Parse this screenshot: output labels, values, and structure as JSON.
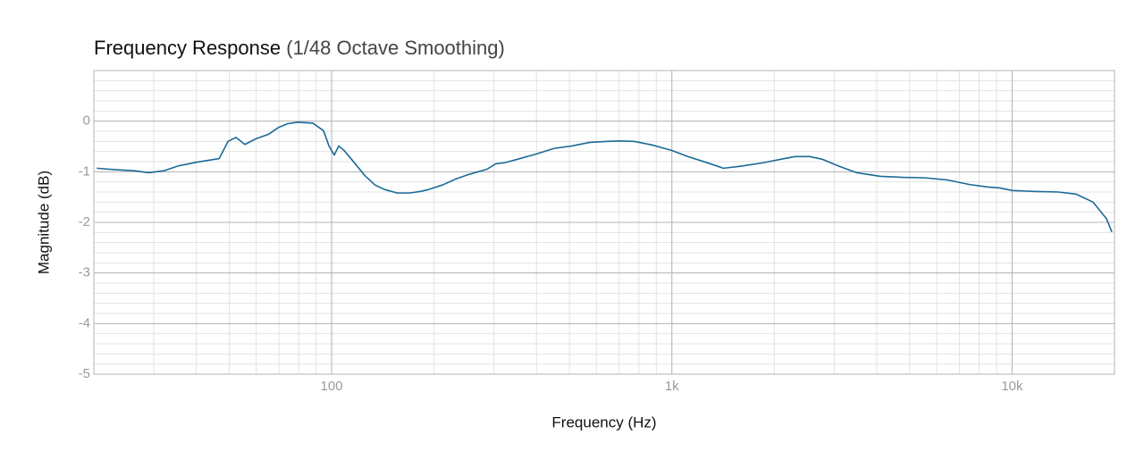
{
  "chart_data": {
    "type": "line",
    "title": "Frequency Response",
    "subtitle": "(1/48 Octave Smoothing)",
    "x_label": "Frequency (Hz)",
    "y_label": "Magnitude (dB)",
    "x_scale": "log",
    "xlim": [
      20,
      20000
    ],
    "ylim": [
      -5,
      1
    ],
    "xticks": [
      100,
      {
        "value": 1000,
        "label": "1k"
      },
      {
        "value": 10000,
        "label": "10k"
      }
    ],
    "yticks": [
      -5,
      -4,
      -3,
      -2,
      -1,
      0
    ],
    "grid": true,
    "minor_grid": true,
    "x": [
      20.4,
      23.3,
      26.3,
      29,
      32.1,
      35.6,
      40.2,
      46.7,
      49.6,
      52.3,
      55.6,
      59.8,
      65.2,
      70,
      74.3,
      79.5,
      88.1,
      94.7,
      98.2,
      101.8,
      104.9,
      108.8,
      115.6,
      125,
      134,
      143,
      156,
      169,
      182,
      193,
      212,
      232,
      254,
      286,
      304,
      323,
      353,
      399,
      450,
      508,
      574,
      647,
      697,
      775,
      874,
      1000,
      1115,
      1256,
      1417,
      1600,
      1860,
      2100,
      2300,
      2540,
      2760,
      3100,
      3500,
      4100,
      4770,
      5550,
      6430,
      7470,
      8430,
      9200,
      10000,
      11750,
      13650,
      15400,
      17300,
      18950,
      19650
    ],
    "series": [
      {
        "name": "Magnitude",
        "color": "#1b6a98",
        "values": [
          -0.93,
          -0.96,
          -0.98,
          -1.02,
          -0.98,
          -0.88,
          -0.81,
          -0.74,
          -0.4,
          -0.32,
          -0.46,
          -0.35,
          -0.26,
          -0.12,
          -0.05,
          -0.02,
          -0.04,
          -0.19,
          -0.49,
          -0.67,
          -0.49,
          -0.58,
          -0.79,
          -1.07,
          -1.26,
          -1.35,
          -1.42,
          -1.42,
          -1.39,
          -1.35,
          -1.26,
          -1.14,
          -1.05,
          -0.95,
          -0.84,
          -0.82,
          -0.75,
          -0.65,
          -0.54,
          -0.49,
          -0.42,
          -0.4,
          -0.39,
          -0.4,
          -0.47,
          -0.58,
          -0.7,
          -0.81,
          -0.93,
          -0.89,
          -0.82,
          -0.75,
          -0.7,
          -0.7,
          -0.75,
          -0.89,
          -1.02,
          -1.09,
          -1.11,
          -1.12,
          -1.16,
          -1.25,
          -1.3,
          -1.32,
          -1.37,
          -1.39,
          -1.4,
          -1.44,
          -1.6,
          -1.93,
          -2.19
        ]
      }
    ]
  }
}
